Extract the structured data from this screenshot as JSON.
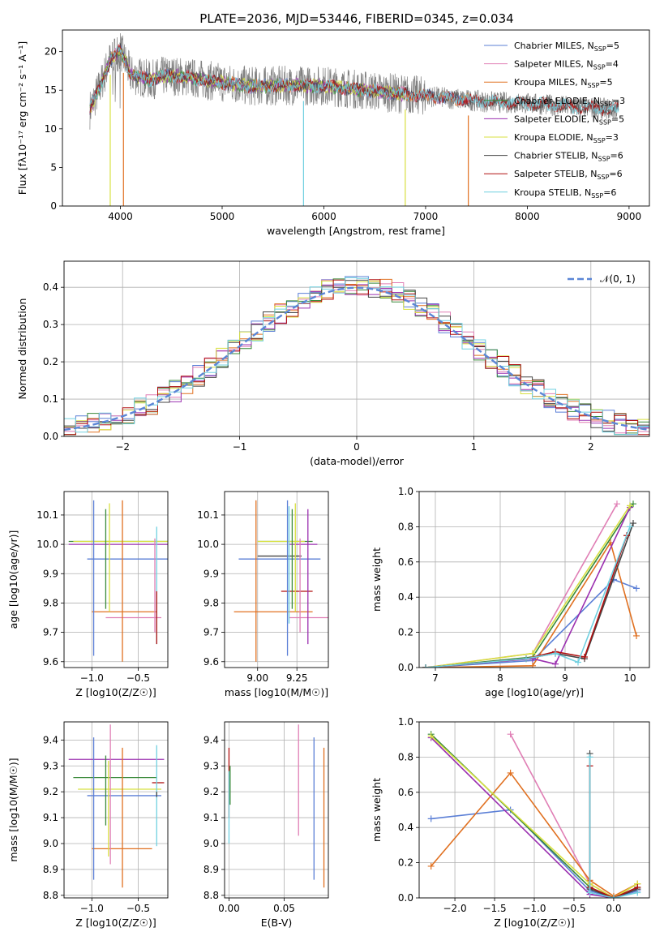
{
  "title": "PLATE=2036, MJD=53446, FIBERID=0345, z=0.034",
  "colors": {
    "chabrier_miles": "#5b7fd6",
    "salpeter_miles": "#e07fb5",
    "kroupa_miles": "#e07020",
    "chabrier_elodie": "#3a8a3a",
    "salpeter_elodie": "#9b30b0",
    "kroupa_elodie": "#d8e040",
    "chabrier_stelib": "#444444",
    "salpeter_stelib": "#b01010",
    "kroupa_stelib": "#70d0e0",
    "normal_curve": "#5b86d6",
    "grid": "#b0b0b0"
  },
  "chart_data": [
    {
      "id": "spectrum",
      "type": "line",
      "xlabel": "wavelength [Angstrom, rest frame]",
      "ylabel": "Flux [fλ10⁻¹⁷ erg cm⁻² s⁻¹ A⁻¹]",
      "xlim": [
        3430,
        9200
      ],
      "ylim": [
        0,
        22.8
      ],
      "xticks": [
        4000,
        5000,
        6000,
        7000,
        8000,
        9000
      ],
      "yticks": [
        0,
        5,
        10,
        15,
        20
      ],
      "grid": false,
      "legend_placement": "upper right",
      "continuum": {
        "x": [
          3700,
          3800,
          3900,
          4000,
          4100,
          4200,
          4300,
          4400,
          4500,
          4700,
          5000,
          5300,
          5600,
          6000,
          6400,
          6800,
          7200,
          7600,
          8000,
          8400,
          8800,
          8900
        ],
        "y": [
          12.5,
          15.5,
          19,
          20.2,
          17,
          16.7,
          16.3,
          16.8,
          16.9,
          16.6,
          16.0,
          15.5,
          15.6,
          15.6,
          15.0,
          14.5,
          14.0,
          13.5,
          13.3,
          12.9,
          12.6,
          12.5
        ]
      },
      "legend": [
        {
          "label": "Chabrier MILES, N_SSP=5",
          "color_key": "chabrier_miles"
        },
        {
          "label": "Salpeter MILES, N_SSP=4",
          "color_key": "salpeter_miles"
        },
        {
          "label": "Kroupa MILES, N_SSP=5",
          "color_key": "kroupa_miles"
        },
        {
          "label": "Chabrier ELODIE, N_SSP=3",
          "color_key": "chabrier_elodie"
        },
        {
          "label": "Salpeter ELODIE, N_SSP=5",
          "color_key": "salpeter_elodie"
        },
        {
          "label": "Kroupa ELODIE, N_SSP=3",
          "color_key": "kroupa_elodie"
        },
        {
          "label": "Chabrier STELIB, N_SSP=6",
          "color_key": "chabrier_stelib"
        },
        {
          "label": "Salpeter STELIB, N_SSP=6",
          "color_key": "salpeter_stelib"
        },
        {
          "label": "Kroupa STELIB, N_SSP=6",
          "color_key": "kroupa_stelib"
        }
      ]
    },
    {
      "id": "residual_hist",
      "type": "line",
      "xlabel": "(data-model)/error",
      "ylabel": "Normed distribution",
      "xlim": [
        -2.5,
        2.5
      ],
      "ylim": [
        0,
        0.47
      ],
      "xticks": [
        -2,
        -1,
        0,
        1,
        2
      ],
      "yticks": [
        0.0,
        0.1,
        0.2,
        0.3,
        0.4
      ],
      "grid": true,
      "legend_placement": "upper right",
      "legend": [
        {
          "label": "𝒩(0, 1)",
          "color_key": "normal_curve"
        }
      ],
      "bin_width": 0.1,
      "series_keys": [
        "chabrier_miles",
        "salpeter_miles",
        "kroupa_miles",
        "chabrier_elodie",
        "salpeter_elodie",
        "kroupa_elodie",
        "chabrier_stelib",
        "salpeter_stelib",
        "kroupa_stelib"
      ]
    },
    {
      "id": "age_vs_Z",
      "type": "scatter",
      "xlabel": "Z [log10(Z/Z☉)]",
      "ylabel": "age  [log10(age/yr)]",
      "xlim": [
        -1.3,
        -0.18
      ],
      "ylim": [
        9.58,
        10.18
      ],
      "xticks": [
        -1.0,
        -0.5
      ],
      "xtick_labels": [
        "−1.0",
        "−0.5"
      ],
      "yticks": [
        9.6,
        9.7,
        9.8,
        9.9,
        10.0,
        10.1
      ],
      "grid": true,
      "points": [
        {
          "key": "chabrier_miles",
          "x": -0.6,
          "xerr": 0.45,
          "y": 9.95,
          "yerr": 0.05
        },
        {
          "key": "salpeter_miles",
          "x": -0.55,
          "xerr": 0.3,
          "y": 9.75,
          "yerr": 0.0
        },
        {
          "key": "kroupa_miles",
          "x": -0.65,
          "xerr": 0.35,
          "y": 9.77,
          "yerr": 0.17
        },
        {
          "key": "chabrier_elodie",
          "x": -0.65,
          "xerr": 0.6,
          "y": 10.01,
          "yerr": 0.0
        },
        {
          "key": "salpeter_elodie",
          "x": -0.7,
          "xerr": 0.55,
          "y": 10.0,
          "yerr": 0.0
        },
        {
          "key": "kroupa_elodie",
          "x": -0.65,
          "xerr": 0.55,
          "y": 10.01,
          "yerr": 0.0
        },
        {
          "key": "chabrier_stelib",
          "x": -0.3,
          "xerr": 0.0,
          "y": 9.96,
          "yerr": 0.0
        },
        {
          "key": "salpeter_stelib",
          "x": -0.3,
          "xerr": 0.0,
          "y": 9.85,
          "yerr": 0.0
        },
        {
          "key": "kroupa_stelib",
          "x": -0.3,
          "xerr": 0.0,
          "y": 9.85,
          "yerr": 0.2
        }
      ],
      "vlines": [
        {
          "key": "chabrier_miles",
          "x": -0.98,
          "y0": 9.62,
          "y1": 10.15
        },
        {
          "key": "kroupa_miles",
          "x": -0.67,
          "y0": 9.6,
          "y1": 10.15
        },
        {
          "key": "chabrier_elodie",
          "x": -0.85,
          "y0": 9.78,
          "y1": 10.12
        },
        {
          "key": "kroupa_elodie",
          "x": -0.81,
          "y0": 9.77,
          "y1": 10.14
        },
        {
          "key": "salpeter_miles",
          "x": -0.32,
          "y0": 9.7,
          "y1": 10.02
        },
        {
          "key": "kroupa_stelib",
          "x": -0.3,
          "y0": 9.66,
          "y1": 10.06
        },
        {
          "key": "salpeter_stelib",
          "x": -0.3,
          "y0": 9.66,
          "y1": 9.84
        }
      ]
    },
    {
      "id": "age_vs_mass",
      "type": "scatter",
      "xlabel": "mass [log10(M/M☉)]",
      "ylabel": "",
      "xlim": [
        8.79,
        9.45
      ],
      "ylim": [
        9.58,
        10.18
      ],
      "xticks": [
        9.0,
        9.25
      ],
      "xtick_labels": [
        "9.00",
        "9.25"
      ],
      "yticks": [
        9.6,
        9.7,
        9.8,
        9.9,
        10.0,
        10.1
      ],
      "grid": true
    },
    {
      "id": "mass_weight_vs_age",
      "type": "line",
      "xlabel": "age  [log10(age/yr)]",
      "ylabel": "mass weight",
      "xlim": [
        6.75,
        10.3
      ],
      "ylim": [
        0,
        1.0
      ],
      "xticks": [
        7,
        8,
        9,
        10
      ],
      "yticks": [
        0.0,
        0.2,
        0.4,
        0.6,
        0.8,
        1.0
      ],
      "grid": true,
      "series": [
        {
          "key": "chabrier_miles",
          "x": [
            6.85,
            8.5,
            9.75,
            10.1
          ],
          "y": [
            0.0,
            0.04,
            0.5,
            0.45
          ]
        },
        {
          "key": "salpeter_miles",
          "x": [
            6.85,
            8.5,
            9.8
          ],
          "y": [
            0.0,
            0.08,
            0.93
          ]
        },
        {
          "key": "kroupa_miles",
          "x": [
            6.85,
            8.5,
            9.7,
            10.1
          ],
          "y": [
            0.0,
            0.01,
            0.71,
            0.18
          ]
        },
        {
          "key": "chabrier_elodie",
          "x": [
            6.85,
            8.5,
            10.05
          ],
          "y": [
            0.0,
            0.06,
            0.93
          ]
        },
        {
          "key": "salpeter_elodie",
          "x": [
            6.85,
            8.5,
            8.85,
            10.0
          ],
          "y": [
            0.0,
            0.05,
            0.02,
            0.91
          ]
        },
        {
          "key": "kroupa_elodie",
          "x": [
            6.85,
            8.5,
            10.0
          ],
          "y": [
            0.0,
            0.08,
            0.92
          ]
        },
        {
          "key": "chabrier_stelib",
          "x": [
            6.85,
            8.4,
            8.85,
            9.3,
            10.05
          ],
          "y": [
            0.0,
            0.05,
            0.08,
            0.05,
            0.82
          ]
        },
        {
          "key": "salpeter_stelib",
          "x": [
            6.85,
            8.4,
            8.85,
            9.3,
            9.95
          ],
          "y": [
            0.0,
            0.05,
            0.09,
            0.06,
            0.75
          ]
        },
        {
          "key": "kroupa_stelib",
          "x": [
            6.85,
            8.4,
            8.85,
            9.2,
            10.0
          ],
          "y": [
            0.0,
            0.05,
            0.08,
            0.03,
            0.8
          ]
        }
      ]
    },
    {
      "id": "mass_vs_Z",
      "type": "scatter",
      "xlabel": "Z [log10(Z/Z☉)]",
      "ylabel": "mass [log10(M/M☉)]",
      "xlim": [
        -1.3,
        -0.18
      ],
      "ylim": [
        8.79,
        9.47
      ],
      "xticks": [
        -1.0,
        -0.5
      ],
      "xtick_labels": [
        "−1.0",
        "−0.5"
      ],
      "yticks": [
        8.8,
        8.9,
        9.0,
        9.1,
        9.2,
        9.3,
        9.4
      ],
      "grid": true
    },
    {
      "id": "mass_vs_ebv",
      "type": "scatter",
      "xlabel": "E(B-V)",
      "ylabel": "",
      "xlim": [
        -0.004,
        0.09
      ],
      "ylim": [
        8.79,
        9.47
      ],
      "xticks": [
        0.0,
        0.05
      ],
      "xtick_labels": [
        "0.00",
        "0.05"
      ],
      "yticks": [
        8.8,
        8.9,
        9.0,
        9.1,
        9.2,
        9.3,
        9.4
      ],
      "grid": true
    },
    {
      "id": "mass_weight_vs_Z",
      "type": "line",
      "xlabel": "Z [log10(Z/Z☉)]",
      "ylabel": "mass weight",
      "xlim": [
        -2.45,
        0.45
      ],
      "ylim": [
        0,
        1.0
      ],
      "xticks": [
        -2.0,
        -1.5,
        -1.0,
        -0.5,
        0.0
      ],
      "xtick_labels": [
        "−2.0",
        "−1.5",
        "−1.0",
        "−0.5",
        "0.0"
      ],
      "yticks": [
        0.0,
        0.2,
        0.4,
        0.6,
        0.8,
        1.0
      ],
      "grid": true,
      "series": [
        {
          "key": "chabrier_miles",
          "x": [
            -2.3,
            -1.3,
            -0.3,
            0.0,
            0.3
          ],
          "y": [
            0.45,
            0.5,
            0.04,
            0.0,
            0.04
          ]
        },
        {
          "key": "salpeter_miles",
          "x": [
            -1.3,
            -0.3,
            0.0,
            0.3
          ],
          "y": [
            0.93,
            0.08,
            0.0,
            0.08
          ]
        },
        {
          "key": "kroupa_miles",
          "x": [
            -2.3,
            -1.3,
            -0.3,
            0.0,
            0.3
          ],
          "y": [
            0.18,
            0.71,
            0.1,
            0.01,
            0.08
          ]
        },
        {
          "key": "chabrier_elodie",
          "x": [
            -2.3,
            -0.3,
            0.0,
            0.3
          ],
          "y": [
            0.93,
            0.06,
            0.0,
            0.06
          ]
        },
        {
          "key": "salpeter_elodie",
          "x": [
            -2.3,
            -0.3,
            0.0,
            0.3
          ],
          "y": [
            0.91,
            0.02,
            0.0,
            0.05
          ]
        },
        {
          "key": "kroupa_elodie",
          "x": [
            -2.3,
            -0.3,
            0.0,
            0.3
          ],
          "y": [
            0.92,
            0.08,
            0.0,
            0.08
          ]
        },
        {
          "key": "chabrier_stelib",
          "x": [
            -0.3,
            -0.3,
            0.0,
            0.3
          ],
          "y": [
            0.82,
            0.05,
            0.0,
            0.05
          ]
        },
        {
          "key": "salpeter_stelib",
          "x": [
            -0.3,
            -0.3,
            0.0,
            0.3
          ],
          "y": [
            0.75,
            0.06,
            0.0,
            0.06
          ]
        },
        {
          "key": "kroupa_stelib",
          "x": [
            -0.3,
            -0.3,
            0.0,
            0.3
          ],
          "y": [
            0.8,
            0.03,
            0.0,
            0.03
          ]
        }
      ]
    }
  ]
}
